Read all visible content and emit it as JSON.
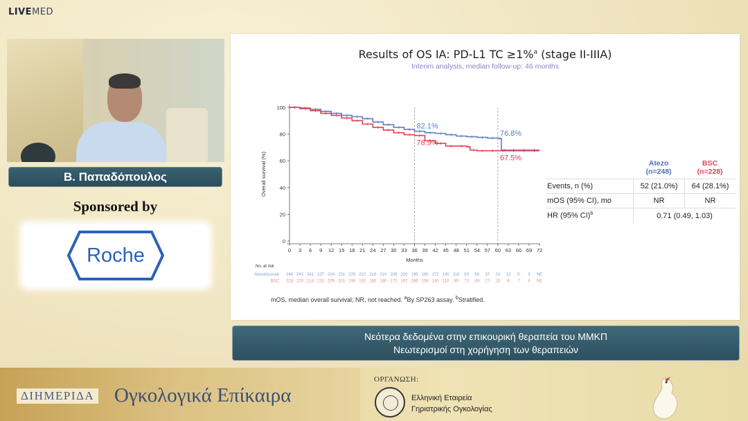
{
  "brand": {
    "live": "LIVE",
    "med": "MED"
  },
  "speaker": {
    "name": "Β. Παπαδόπουλος"
  },
  "sponsor": {
    "label": "Sponsored by",
    "logo_text": "Roche"
  },
  "slide": {
    "title": "Results of OS IA: PD-L1 TC ≥1%",
    "title_sup": "a",
    "title_suffix": " (stage II-IIIA)",
    "subtitle": "Interim analysis, median follow-up: 46 months",
    "footnote": "mOS, median overall survival; NR, not reached. ",
    "footnote_a_sup": "a",
    "footnote_a": "By SP263 assay. ",
    "footnote_b_sup": "b",
    "footnote_b": "Stratified.",
    "table": {
      "col1_name": "Atezo",
      "col1_n": "(n=248)",
      "col2_name": "BSC",
      "col2_n": "(n=228)",
      "rows": [
        {
          "label": "Events, n (%)",
          "v1": "52 (21.0%)",
          "v2": "64 (28.1%)"
        },
        {
          "label": "mOS (95% CI), mo",
          "v1": "NR",
          "v2": "NR"
        }
      ],
      "hr_label": "HR (95% CI)",
      "hr_sup": "b",
      "hr_value": "0.71 (0.49, 1.03)"
    }
  },
  "chart_data": {
    "type": "line",
    "title": "Results of OS IA: PD-L1 TC ≥1%ᵃ (stage II-IIIA)",
    "xlabel": "Months",
    "ylabel": "Overall survival (%)",
    "xlim": [
      0,
      72
    ],
    "ylim": [
      0,
      100
    ],
    "x_ticks": [
      0,
      3,
      6,
      9,
      12,
      15,
      18,
      21,
      24,
      27,
      30,
      33,
      36,
      39,
      42,
      45,
      48,
      51,
      54,
      57,
      60,
      63,
      66,
      69,
      72
    ],
    "y_ticks": [
      0,
      20,
      40,
      60,
      80,
      100
    ],
    "reference_lines_x": [
      36,
      60
    ],
    "series": [
      {
        "name": "Atezolizumab",
        "color": "#5b7fc4",
        "x": [
          0,
          3,
          6,
          9,
          12,
          15,
          18,
          21,
          24,
          27,
          30,
          33,
          36,
          39,
          42,
          45,
          48,
          51,
          54,
          57,
          60,
          61,
          63,
          66,
          69,
          72
        ],
        "y": [
          100,
          99.5,
          98.5,
          97,
          95.5,
          94,
          93,
          91.5,
          89,
          87,
          85,
          83.5,
          82.1,
          81,
          80.5,
          79.5,
          78.5,
          78,
          77.5,
          77,
          76.8,
          68,
          68,
          68,
          68,
          68
        ]
      },
      {
        "name": "BSC",
        "color": "#e0404f",
        "x": [
          0,
          3,
          6,
          9,
          12,
          15,
          18,
          21,
          24,
          27,
          30,
          33,
          36,
          39,
          42,
          45,
          48,
          51,
          52,
          54,
          57,
          60,
          63,
          66,
          69,
          72
        ],
        "y": [
          100,
          99,
          97.5,
          95.5,
          94,
          92,
          90,
          87.5,
          85,
          83,
          81,
          79.5,
          78.9,
          75,
          73,
          71,
          71,
          70.5,
          68,
          67.5,
          67.5,
          67.5,
          67.5,
          67.5,
          67.5,
          67.5
        ]
      }
    ],
    "annotations": [
      {
        "text": "82.1%",
        "x": 36,
        "y": 82.1,
        "series": "Atezolizumab"
      },
      {
        "text": "78.9%",
        "x": 36,
        "y": 78.9,
        "series": "BSC"
      },
      {
        "text": "76.8%",
        "x": 60,
        "y": 76.8,
        "series": "Atezolizumab"
      },
      {
        "text": "67.5%",
        "x": 60,
        "y": 67.5,
        "series": "BSC"
      }
    ],
    "number_at_risk": {
      "title": "No. at risk",
      "rows": [
        {
          "label": "Atezolizumab",
          "color": "#8aa0d4",
          "values": [
            "248",
            "241",
            "241",
            "237",
            "234",
            "231",
            "225",
            "222",
            "218",
            "210",
            "208",
            "200",
            "195",
            "190",
            "172",
            "140",
            "116",
            "83",
            "56",
            "37",
            "23",
            "12",
            "5",
            "3",
            "NE"
          ]
        },
        {
          "label": "BSC",
          "color": "#e88892",
          "values": [
            "228",
            "220",
            "214",
            "210",
            "205",
            "201",
            "198",
            "192",
            "185",
            "180",
            "172",
            "167",
            "166",
            "158",
            "140",
            "110",
            "95",
            "72",
            "49",
            "27",
            "15",
            "8",
            "7",
            "4",
            "NE"
          ]
        }
      ]
    }
  },
  "caption": {
    "line1": "Νεότερα δεδομένα στην επικουρική θεραπεία του ΜΜΚΠ",
    "line2": "Νεωτερισμοί στη χορήγηση των θεραπειών"
  },
  "banner": {
    "label": "ΔΙΗΜΕΡΙΔΑ",
    "title": "Ογκολογικά Επίκαιρα",
    "org_label": "ΟΡΓΑΝΩΣΗ:",
    "org_line1": "Ελληνική Εταιρεία",
    "org_line2": "Γηριατρικής Ογκολογίας"
  }
}
